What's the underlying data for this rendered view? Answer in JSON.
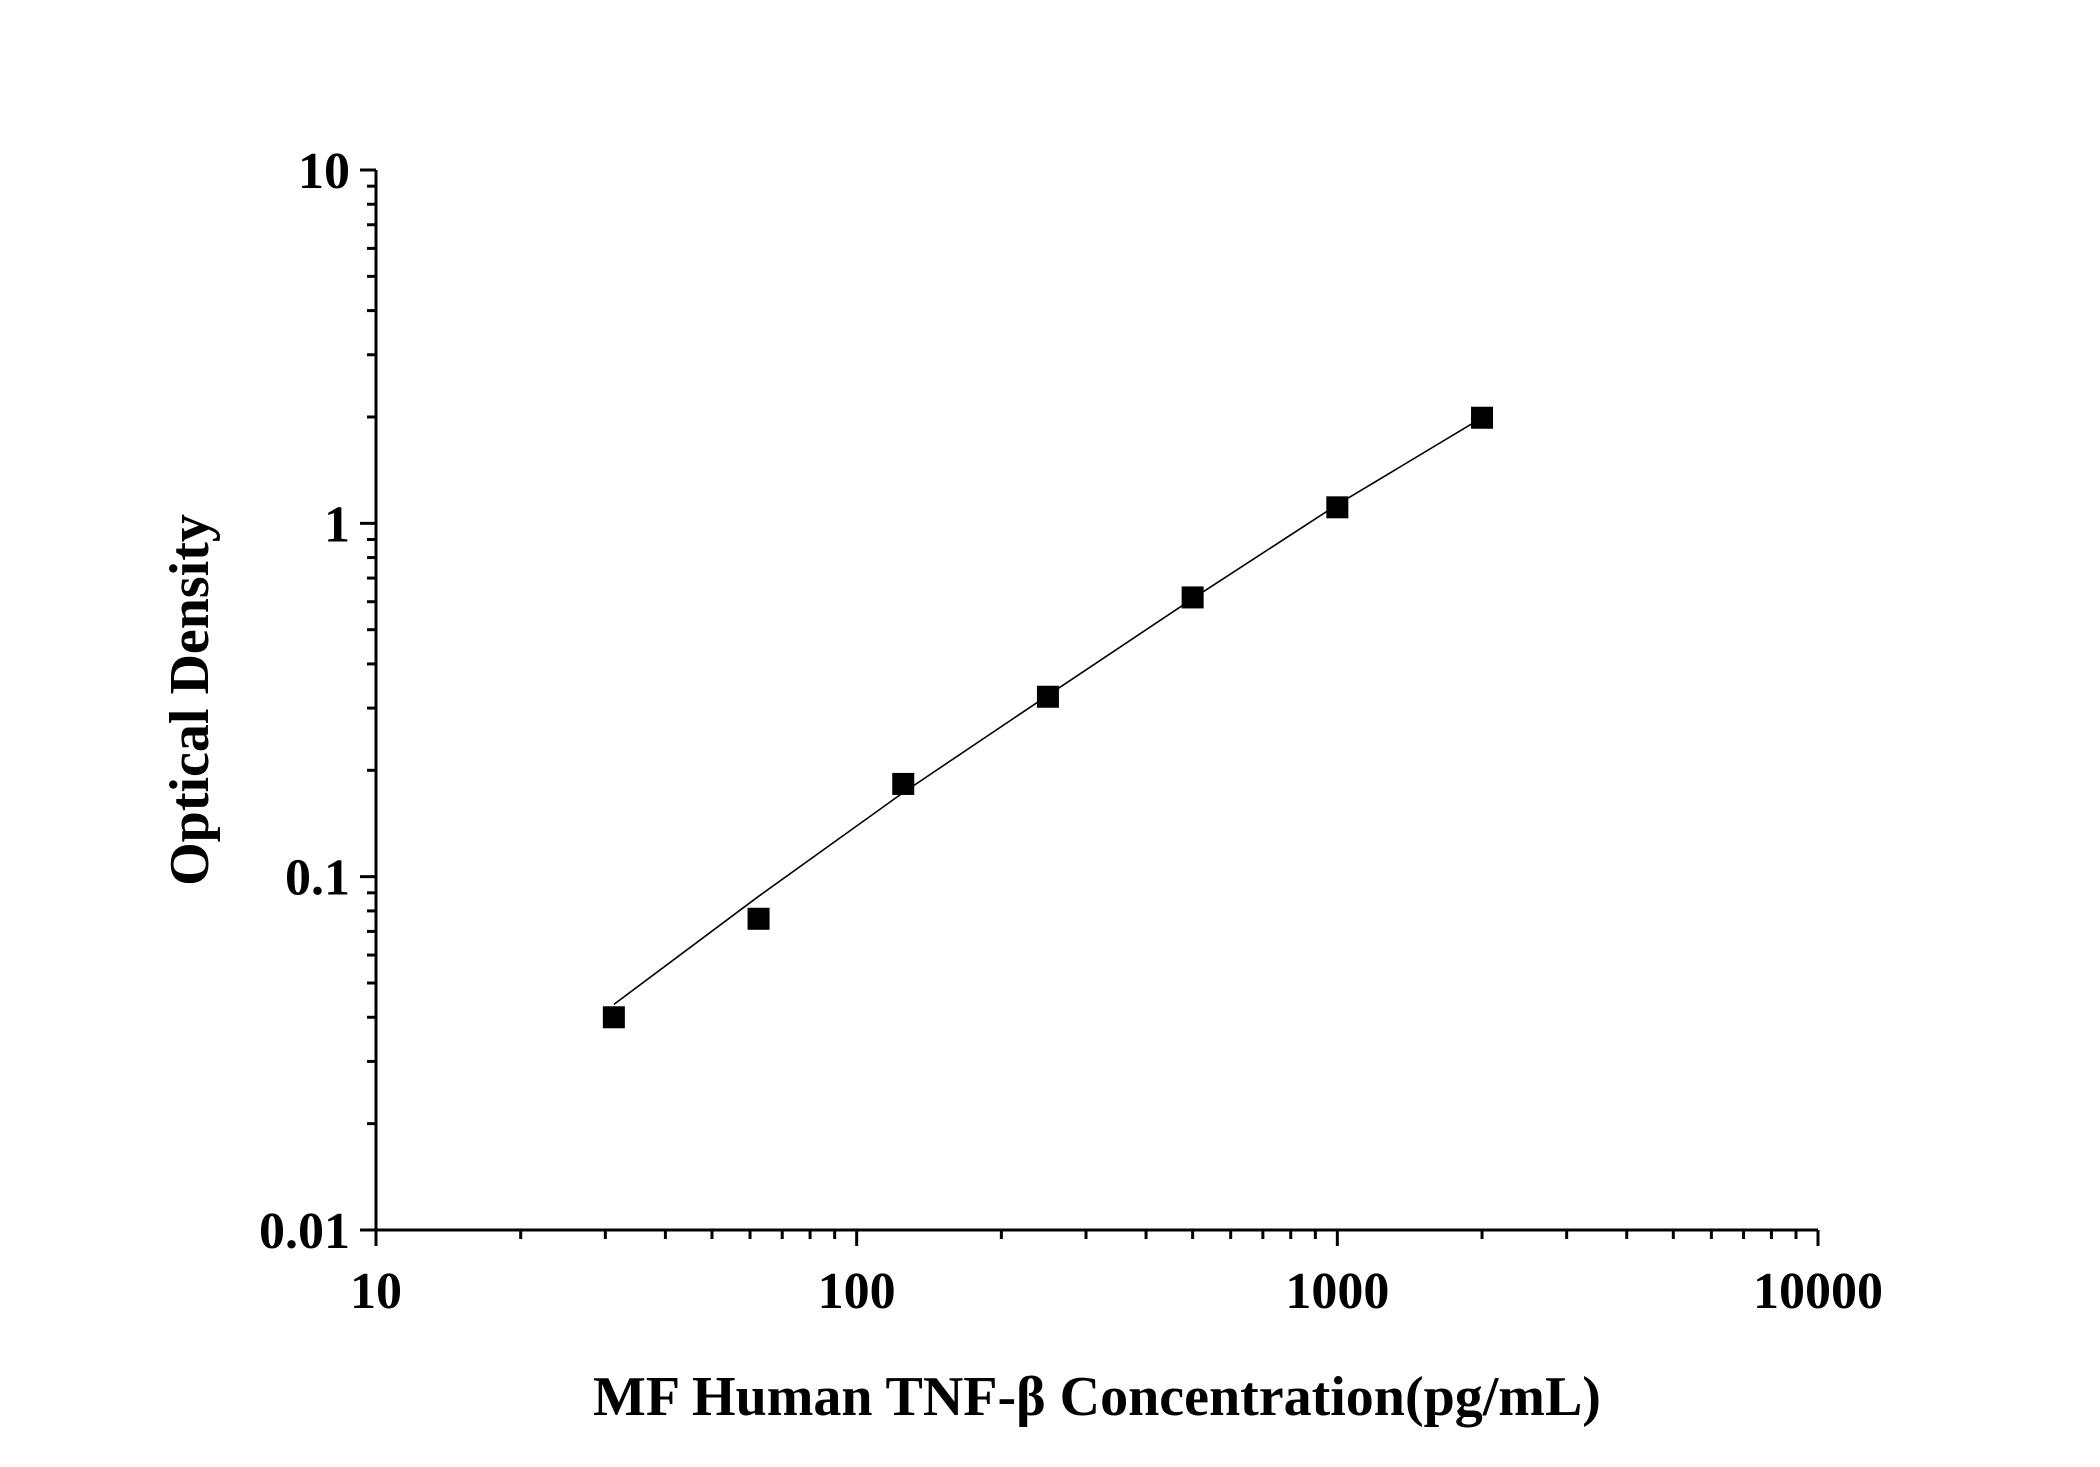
{
  "chart_data": {
    "type": "scatter",
    "xlabel": "MF Human TNF-β Concentration(pg/mL)",
    "ylabel": "Optical Density",
    "xscale": "log",
    "yscale": "log",
    "xlim": [
      10,
      10000
    ],
    "ylim": [
      0.01,
      10
    ],
    "xticks": [
      "10",
      "100",
      "1000",
      "10000"
    ],
    "yticks": [
      "0.01",
      "0.1",
      "1",
      "10"
    ],
    "grid": false,
    "legend": "none",
    "series": [
      {
        "marker": "square",
        "x": [
          31.25,
          62.5,
          125,
          250,
          500,
          1000,
          2000
        ],
        "y": [
          0.04,
          0.076,
          0.183,
          0.323,
          0.617,
          1.11,
          1.99
        ]
      }
    ],
    "fit_line": {
      "x": [
        31.25,
        62.5,
        125,
        250,
        500,
        1000,
        2000
      ],
      "y": [
        0.0435,
        0.088,
        0.173,
        0.326,
        0.612,
        1.13,
        1.99
      ]
    },
    "colors": {
      "marker": "#000000",
      "line": "#000000",
      "axis": "#000000"
    }
  }
}
